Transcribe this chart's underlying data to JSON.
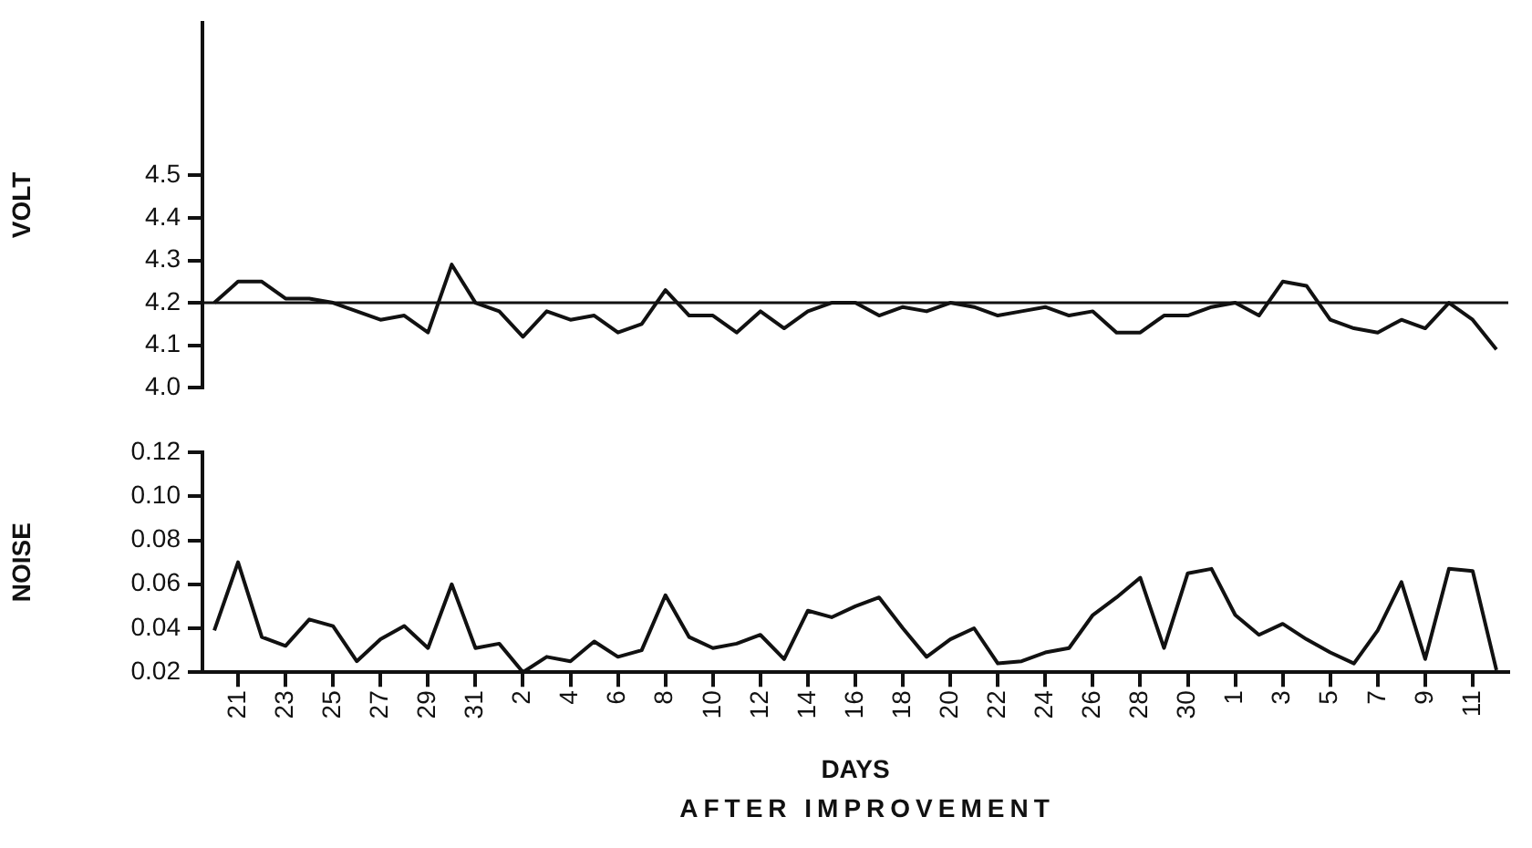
{
  "chart_data": [
    {
      "type": "line",
      "ylabel": "VOLT",
      "categories": [
        null,
        "21",
        null,
        "23",
        null,
        "25",
        null,
        "27",
        null,
        "29",
        null,
        "31",
        null,
        "2",
        null,
        "4",
        null,
        "6",
        null,
        "8",
        null,
        "10",
        null,
        "12",
        null,
        "14",
        null,
        "16",
        null,
        "18",
        null,
        "20",
        null,
        "22",
        null,
        "24",
        null,
        "26",
        null,
        "28",
        null,
        "30",
        null,
        "1",
        null,
        "3",
        null,
        "5",
        null,
        "7",
        null,
        "9",
        null,
        "11",
        null
      ],
      "series": [
        {
          "color": "#111111",
          "values": [
            4.2,
            4.25,
            4.25,
            4.21,
            4.21,
            4.2,
            4.18,
            4.16,
            4.17,
            4.13,
            4.29,
            4.2,
            4.18,
            4.12,
            4.18,
            4.16,
            4.17,
            4.13,
            4.15,
            4.23,
            4.17,
            4.17,
            4.13,
            4.18,
            4.14,
            4.18,
            4.2,
            4.2,
            4.17,
            4.19,
            4.18,
            4.2,
            4.19,
            4.17,
            4.18,
            4.19,
            4.17,
            4.18,
            4.13,
            4.13,
            4.17,
            4.17,
            4.19,
            4.2,
            4.17,
            4.25,
            4.24,
            4.16,
            4.14,
            4.13,
            4.16,
            4.14,
            4.2,
            4.16,
            4.09
          ]
        }
      ],
      "ylim": [
        4.0,
        4.86
      ],
      "yticks": [
        {
          "value": 4.0,
          "label": "4.0"
        },
        4.1,
        4.2,
        4.3,
        4.4,
        4.5
      ],
      "ref_lines": [
        {
          "axis": "y",
          "value": 4.2,
          "color": "#111111"
        }
      ],
      "tick_labels": "y",
      "marker": "none",
      "line_style": "solid",
      "legend": false,
      "grid": false
    },
    {
      "type": "line",
      "ylabel": "NOISE",
      "xlabel": "DAYS",
      "annotations": [
        "AFTER IMPROVEMENT"
      ],
      "categories": [
        null,
        "21",
        null,
        "23",
        null,
        "25",
        null,
        "27",
        null,
        "29",
        null,
        "31",
        null,
        "2",
        null,
        "4",
        null,
        "6",
        null,
        "8",
        null,
        "10",
        null,
        "12",
        null,
        "14",
        null,
        "16",
        null,
        "18",
        null,
        "20",
        null,
        "22",
        null,
        "24",
        null,
        "26",
        null,
        "28",
        null,
        "30",
        null,
        "1",
        null,
        "3",
        null,
        "5",
        null,
        "7",
        null,
        "9",
        null,
        "11",
        null
      ],
      "series": [
        {
          "color": "#111111",
          "values": [
            0.039,
            0.07,
            0.036,
            0.032,
            0.044,
            0.041,
            0.025,
            0.035,
            0.041,
            0.031,
            0.06,
            0.031,
            0.033,
            0.02,
            0.027,
            0.025,
            0.034,
            0.027,
            0.03,
            0.055,
            0.036,
            0.031,
            0.033,
            0.037,
            0.026,
            0.048,
            0.045,
            0.05,
            0.054,
            0.04,
            0.027,
            0.035,
            0.04,
            0.024,
            0.025,
            0.029,
            0.031,
            0.046,
            0.054,
            0.063,
            0.031,
            0.065,
            0.067,
            0.046,
            0.037,
            0.042,
            0.035,
            0.029,
            0.024,
            0.039,
            0.061,
            0.026,
            0.067,
            0.066,
            0.021
          ]
        }
      ],
      "ylim": [
        0.02,
        0.12
      ],
      "yticks": [
        0.02,
        0.04,
        0.06,
        0.08,
        {
          "value": 0.1,
          "label": "0.10"
        },
        0.12
      ],
      "marker": "none",
      "line_style": "solid",
      "legend": false,
      "grid": false
    }
  ]
}
